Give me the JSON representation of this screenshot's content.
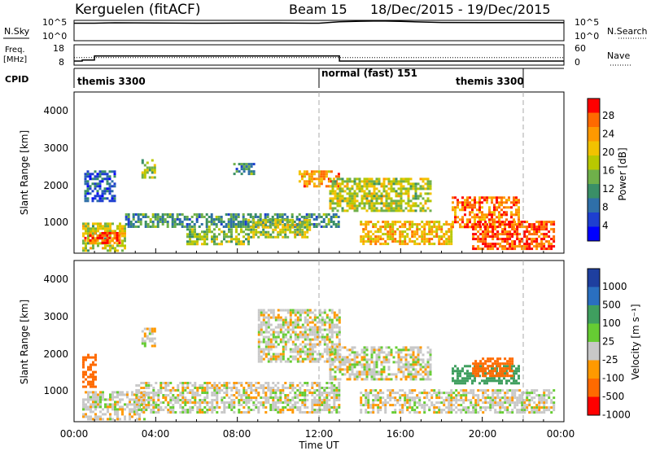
{
  "header": {
    "station": "Kerguelen (fitACF)",
    "beam": "Beam 15",
    "date_range": "18/Dec/2015 - 19/Dec/2015"
  },
  "top_panels": {
    "nsky_label": "N.Sky",
    "nsearch_label": "N.Search",
    "freq_label_1": "Freq.",
    "freq_label_2": "[MHz]",
    "nave_label": "Nave",
    "cpid_label": "CPID",
    "noise_ticks_left": [
      "10^5",
      "10^0"
    ],
    "noise_ticks_right": [
      "10^5",
      "10^0"
    ],
    "freq_ticks": [
      "18",
      "8"
    ],
    "nave_ticks": [
      "60",
      "0"
    ],
    "cpid_modes": [
      "themis 3300",
      "normal (fast) 151",
      "themis 3300"
    ]
  },
  "power_colorbar": {
    "label": "Power [dB]",
    "ticks": [
      "28",
      "24",
      "20",
      "16",
      "12",
      "8",
      "4"
    ],
    "colors": [
      "#ff0000",
      "#ff6a00",
      "#ff9900",
      "#f2c200",
      "#b8c800",
      "#6fb04a",
      "#3a8f67",
      "#2f6fa8",
      "#1e3fd0",
      "#0000ff"
    ]
  },
  "velocity_colorbar": {
    "label": "Velocity [m s⁻¹]",
    "ticks": [
      "1000",
      "500",
      "100",
      "25",
      "-25",
      "-100",
      "-500",
      "-1000"
    ],
    "colors": [
      "#1e3f9f",
      "#2a6fc0",
      "#3f9f5f",
      "#66cc33",
      "#c8c8c8",
      "#ff9900",
      "#ff6a00",
      "#ff0000"
    ]
  },
  "axes": {
    "ylabel": "Slant Range [km]",
    "xlabel": "Time UT",
    "y_ticks": [
      "4000",
      "3000",
      "2000",
      "1000"
    ],
    "x_ticks": [
      "00:00",
      "04:00",
      "08:00",
      "12:00",
      "16:00",
      "20:00",
      "00:00"
    ]
  },
  "chart_data": [
    {
      "type": "line",
      "panel": "noise",
      "ylim": [
        1,
        100000
      ],
      "series": [
        {
          "name": "N.Sky",
          "x": [
            0,
            1,
            2,
            4,
            6,
            8,
            10,
            12,
            13,
            14,
            15,
            16,
            17,
            18,
            20,
            22,
            24
          ],
          "y": [
            20000,
            20000,
            25000,
            22000,
            20000,
            21000,
            22000,
            20000,
            45000,
            60000,
            70000,
            55000,
            40000,
            30000,
            28000,
            27000,
            26000
          ]
        },
        {
          "name": "N.Search",
          "x": [
            0,
            24
          ],
          "y": [
            1,
            1
          ]
        }
      ]
    },
    {
      "type": "line",
      "panel": "frequency",
      "series": [
        {
          "name": "Freq.",
          "units": "MHz",
          "x": [
            0,
            0.4,
            0.4,
            1,
            1,
            13,
            13,
            24
          ],
          "y": [
            10,
            10,
            10.5,
            10.5,
            12.5,
            12.5,
            10,
            10
          ]
        },
        {
          "name": "Nave",
          "x": [
            0,
            24
          ],
          "y": [
            22,
            22
          ]
        }
      ]
    },
    {
      "type": "heatmap",
      "panel": "power",
      "xlabel": "Time UT",
      "ylabel": "Slant Range [km]",
      "ylim": [
        180,
        4500
      ],
      "xlim": [
        0,
        24
      ],
      "colorbar": "Power [dB]",
      "regions": [
        {
          "t0": 0.4,
          "t1": 2.5,
          "r0": 250,
          "r1": 1000,
          "db": 18
        },
        {
          "t0": 0.5,
          "t1": 2.2,
          "r0": 450,
          "r1": 750,
          "db": 28
        },
        {
          "t0": 2.5,
          "t1": 13,
          "r0": 900,
          "r1": 1250,
          "db": 12
        },
        {
          "t0": 5.5,
          "t1": 8.5,
          "r0": 450,
          "r1": 850,
          "db": 16
        },
        {
          "t0": 8.5,
          "t1": 11.5,
          "r0": 600,
          "r1": 1100,
          "db": 18
        },
        {
          "t0": 11,
          "t1": 13,
          "r0": 1950,
          "r1": 2400,
          "db": 24
        },
        {
          "t0": 12.5,
          "t1": 17.5,
          "r0": 1300,
          "r1": 2200,
          "db": 18
        },
        {
          "t0": 14,
          "t1": 18.5,
          "r0": 450,
          "r1": 1050,
          "db": 22
        },
        {
          "t0": 18.5,
          "t1": 21.8,
          "r0": 900,
          "r1": 1700,
          "db": 26
        },
        {
          "t0": 19.5,
          "t1": 23.5,
          "r0": 300,
          "r1": 1050,
          "db": 28
        },
        {
          "t0": 3.3,
          "t1": 4.0,
          "r0": 2200,
          "r1": 2700,
          "db": 16
        },
        {
          "t0": 7.8,
          "t1": 8.8,
          "r0": 2300,
          "r1": 2600,
          "db": 12
        },
        {
          "t0": 0.5,
          "t1": 2.0,
          "r0": 1600,
          "r1": 2400,
          "db": 8
        }
      ]
    },
    {
      "type": "heatmap",
      "panel": "velocity",
      "xlabel": "Time UT",
      "ylabel": "Slant Range [km]",
      "ylim": [
        180,
        4500
      ],
      "xlim": [
        0,
        24
      ],
      "colorbar": "Velocity [m s⁻¹]",
      "regions": [
        {
          "t0": 0.4,
          "t1": 3.5,
          "r0": 250,
          "r1": 1000,
          "v": 0
        },
        {
          "t0": 3,
          "t1": 13,
          "r0": 450,
          "r1": 1250,
          "v": 0
        },
        {
          "t0": 9,
          "t1": 13,
          "r0": 1800,
          "r1": 3200,
          "v": 0
        },
        {
          "t0": 12.5,
          "t1": 17.5,
          "r0": 1300,
          "r1": 2200,
          "v": 0
        },
        {
          "t0": 14,
          "t1": 23.5,
          "r0": 450,
          "r1": 1050,
          "v": 0
        },
        {
          "t0": 18.5,
          "t1": 21.8,
          "r0": 1200,
          "r1": 1700,
          "v": 150
        },
        {
          "t0": 19.5,
          "t1": 21.5,
          "r0": 1400,
          "r1": 1900,
          "v": -300
        },
        {
          "t0": 0.4,
          "t1": 1.0,
          "r0": 1100,
          "r1": 2000,
          "v": -200
        },
        {
          "t0": 3.3,
          "t1": 4.0,
          "r0": 2200,
          "r1": 2700,
          "v": 0
        }
      ]
    }
  ]
}
